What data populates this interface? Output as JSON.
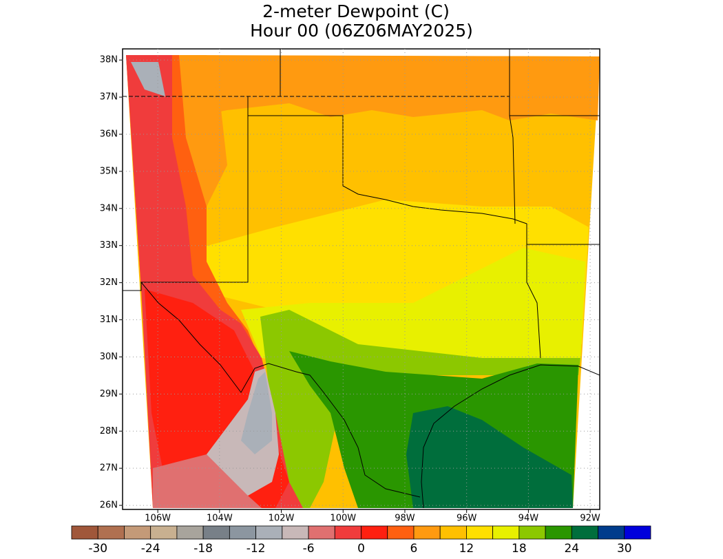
{
  "map": {
    "title": [
      "2-meter Dewpoint (C)",
      "Hour 00 (06Z06MAY2025)"
    ],
    "lon_range": [
      -107.14,
      -91.69
    ],
    "lat_range": [
      25.89,
      38.3
    ],
    "lon_ticks": [
      {
        "value": -106,
        "label": "106W"
      },
      {
        "value": -104,
        "label": "104W"
      },
      {
        "value": -102,
        "label": "102W"
      },
      {
        "value": -100,
        "label": "100W"
      },
      {
        "value": -98,
        "label": "98W"
      },
      {
        "value": -96,
        "label": "96W"
      },
      {
        "value": -94,
        "label": "94W"
      },
      {
        "value": -92,
        "label": "92W"
      }
    ],
    "lat_ticks": [
      {
        "value": 26,
        "label": "26N"
      },
      {
        "value": 27,
        "label": "27N"
      },
      {
        "value": 28,
        "label": "28N"
      },
      {
        "value": 29,
        "label": "29N"
      },
      {
        "value": 30,
        "label": "30N"
      },
      {
        "value": 31,
        "label": "31N"
      },
      {
        "value": 32,
        "label": "32N"
      },
      {
        "value": 33,
        "label": "33N"
      },
      {
        "value": 34,
        "label": "34N"
      },
      {
        "value": 35,
        "label": "35N"
      },
      {
        "value": 36,
        "label": "36N"
      },
      {
        "value": 37,
        "label": "37N"
      },
      {
        "value": 38,
        "label": "38N"
      }
    ],
    "colorbar": {
      "levels": [
        -33,
        -30,
        -27,
        -24,
        -21,
        -18,
        -15,
        -12,
        -9,
        -6,
        -3,
        0,
        3,
        6,
        9,
        12,
        15,
        18,
        21,
        24,
        27,
        30,
        33
      ],
      "colors": [
        "#a0573a",
        "#b07050",
        "#c49a78",
        "#c8b090",
        "#a8a49c",
        "#788088",
        "#8c96a0",
        "#aab0b8",
        "#c8b8b8",
        "#e07070",
        "#f03c3c",
        "#ff2010",
        "#ff6010",
        "#ff9a10",
        "#ffc000",
        "#ffe000",
        "#e8f000",
        "#8cc800",
        "#2a9600",
        "#006e3c",
        "#003c8c",
        "#0000dc"
      ],
      "ticks": [
        -30,
        -24,
        -18,
        -12,
        -6,
        0,
        6,
        12,
        18,
        24,
        30
      ]
    }
  }
}
